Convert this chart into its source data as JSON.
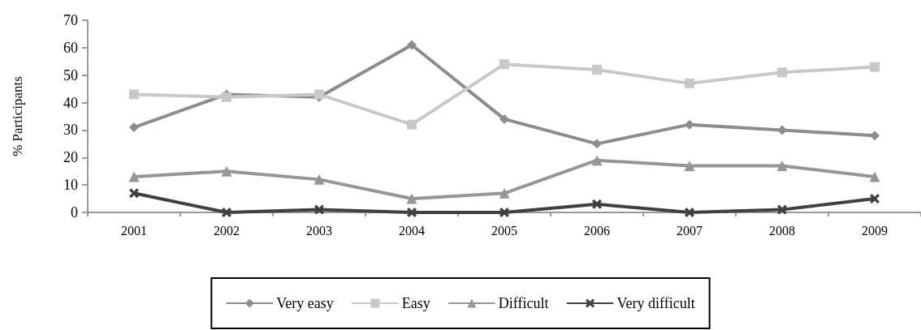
{
  "chart_data": {
    "type": "line",
    "ylabel": "% Participants",
    "categories": [
      "2001",
      "2002",
      "2003",
      "2004",
      "2005",
      "2006",
      "2007",
      "2008",
      "2009"
    ],
    "series": [
      {
        "name": "Very easy",
        "color": "#8c8c8c",
        "marker": "diamond",
        "values": [
          31,
          43,
          42,
          61,
          34,
          25,
          32,
          30,
          28
        ]
      },
      {
        "name": "Easy",
        "color": "#c8c8c8",
        "marker": "square",
        "values": [
          43,
          42,
          43,
          32,
          54,
          52,
          47,
          51,
          53
        ]
      },
      {
        "name": "Difficult",
        "color": "#969696",
        "marker": "triangle",
        "values": [
          13,
          15,
          12,
          5,
          7,
          19,
          17,
          17,
          13
        ]
      },
      {
        "name": "Very difficult",
        "color": "#404040",
        "marker": "cross",
        "values": [
          7,
          0,
          1,
          0,
          0,
          3,
          0,
          1,
          5
        ]
      }
    ],
    "ylim": [
      0,
      70
    ],
    "yticks": [
      0,
      10,
      20,
      30,
      40,
      50,
      60,
      70
    ],
    "grid": false,
    "legend": "bottom",
    "line_style": "solid"
  }
}
